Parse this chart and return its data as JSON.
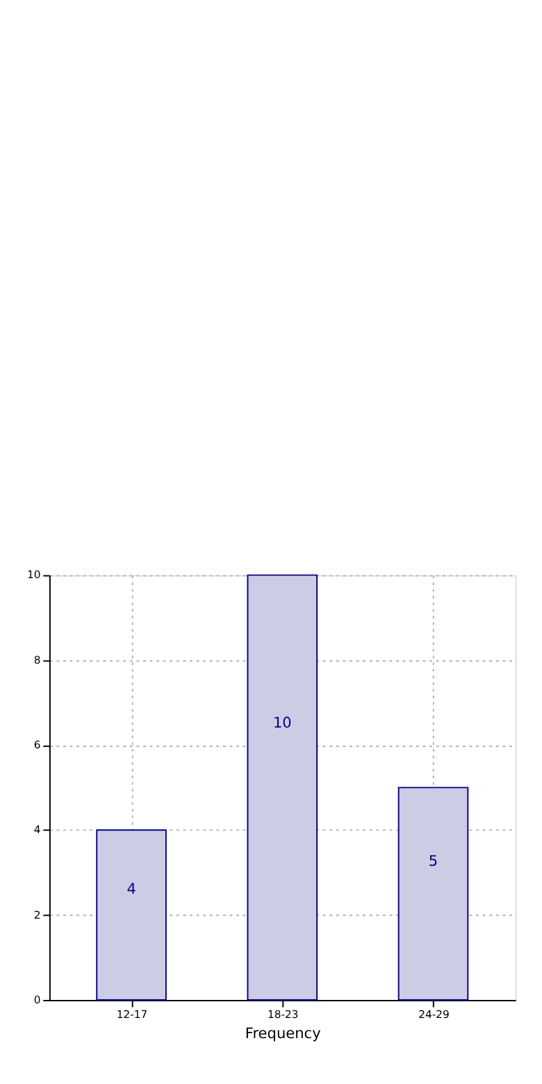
{
  "chart_data": {
    "type": "bar",
    "xlabel": "Frequency",
    "categories": [
      "12-17",
      "18-23",
      "24-29"
    ],
    "values": [
      4,
      10,
      5
    ],
    "color": "#cccce4",
    "ylim": [
      0,
      10
    ],
    "yticks": [
      0,
      2,
      4,
      6,
      8,
      10
    ],
    "grid": true,
    "data_labels": true
  }
}
